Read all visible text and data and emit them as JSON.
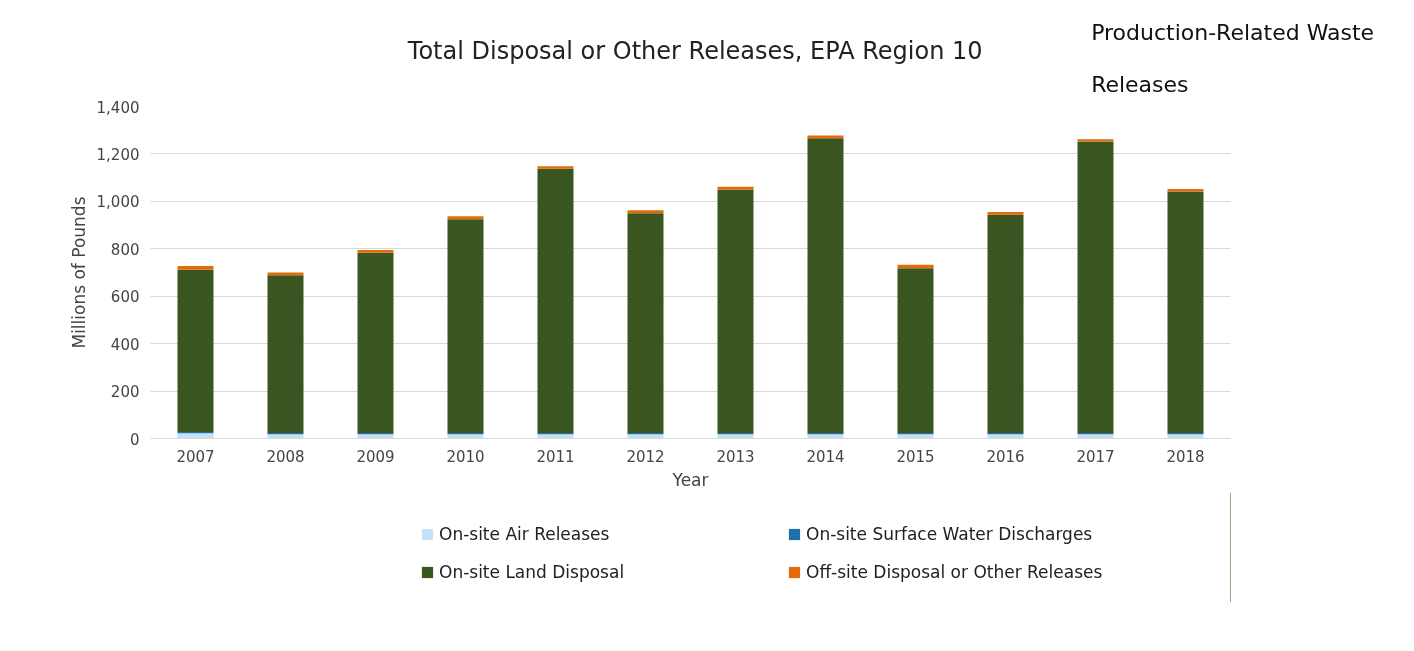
{
  "chart_data": {
    "type": "bar",
    "stacked": true,
    "title": "Total Disposal or Other Releases, EPA Region 10",
    "xlabel": "Year",
    "ylabel": "Millions of Pounds",
    "categories": [
      "2007",
      "2008",
      "2009",
      "2010",
      "2011",
      "2012",
      "2013",
      "2014",
      "2015",
      "2016",
      "2017",
      "2018"
    ],
    "series": [
      {
        "name": "On-site Air Releases",
        "color": "#c5e0f7",
        "values": [
          22,
          18,
          18,
          18,
          18,
          18,
          18,
          18,
          18,
          18,
          18,
          18
        ]
      },
      {
        "name": "On-site Surface Water Discharges",
        "color": "#1f6fa8",
        "values": [
          5,
          5,
          5,
          5,
          5,
          5,
          5,
          5,
          5,
          5,
          5,
          5
        ]
      },
      {
        "name": "On-site Land Disposal",
        "color": "#3a5620",
        "values": [
          685,
          665,
          760,
          902,
          1115,
          927,
          1027,
          1243,
          695,
          920,
          1229,
          1019
        ]
      },
      {
        "name": "Off-site Disposal or Other Releases",
        "color": "#e36c0a",
        "values": [
          15,
          12,
          12,
          12,
          10,
          12,
          12,
          12,
          15,
          12,
          10,
          10
        ]
      }
    ],
    "ylim": [
      0,
      1400
    ],
    "yticks": [
      {
        "value": 0,
        "label": "0"
      },
      {
        "value": 200,
        "label": "200"
      },
      {
        "value": 400,
        "label": "400"
      },
      {
        "value": 600,
        "label": "600"
      },
      {
        "value": 800,
        "label": "800"
      },
      {
        "value": 1000,
        "label": "1,000"
      },
      {
        "value": 1200,
        "label": "1,200"
      },
      {
        "value": 1400,
        "label": "1,400"
      }
    ],
    "grid": "y",
    "legend": "bottom",
    "annotations": [
      "Production-Related Waste",
      "Releases"
    ]
  }
}
